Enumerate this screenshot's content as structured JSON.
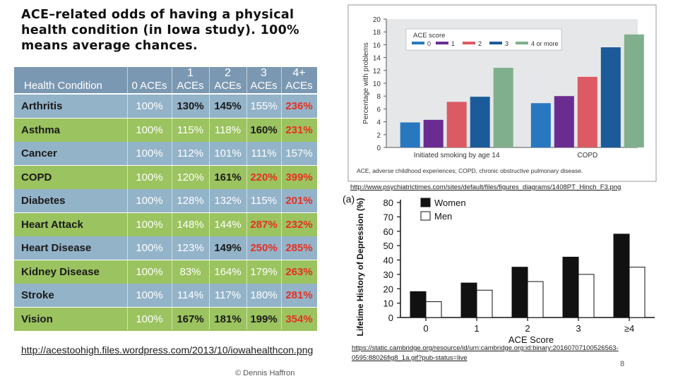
{
  "title": "ACE–related odds of having a physical health condition (in Iowa study). 100% means average chances.",
  "table": {
    "headers": [
      {
        "top": "",
        "bottom": "Health Condition"
      },
      {
        "top": "",
        "bottom": "0 ACEs"
      },
      {
        "top": "1",
        "bottom": "ACEs"
      },
      {
        "top": "2",
        "bottom": "ACEs"
      },
      {
        "top": "3",
        "bottom": "ACEs"
      },
      {
        "top": "4+",
        "bottom": "ACEs"
      }
    ],
    "rows": [
      {
        "condition": "Arthritis",
        "values": [
          "100%",
          "130%",
          "145%",
          "155%",
          "236%"
        ],
        "emphasis": [
          "n",
          "b",
          "b",
          "n",
          "r"
        ]
      },
      {
        "condition": "Asthma",
        "values": [
          "100%",
          "115%",
          "118%",
          "160%",
          "231%"
        ],
        "emphasis": [
          "n",
          "n",
          "n",
          "b",
          "r"
        ]
      },
      {
        "condition": "Cancer",
        "values": [
          "100%",
          "112%",
          "101%",
          "111%",
          "157%"
        ],
        "emphasis": [
          "n",
          "n",
          "n",
          "n",
          "n"
        ]
      },
      {
        "condition": "COPD",
        "values": [
          "100%",
          "120%",
          "161%",
          "220%",
          "399%"
        ],
        "emphasis": [
          "n",
          "n",
          "b",
          "r",
          "r"
        ]
      },
      {
        "condition": "Diabetes",
        "values": [
          "100%",
          "128%",
          "132%",
          "115%",
          "201%"
        ],
        "emphasis": [
          "n",
          "n",
          "n",
          "n",
          "r"
        ]
      },
      {
        "condition": "Heart Attack",
        "values": [
          "100%",
          "148%",
          "144%",
          "287%",
          "232%"
        ],
        "emphasis": [
          "n",
          "n",
          "n",
          "r",
          "r"
        ]
      },
      {
        "condition": "Heart Disease",
        "values": [
          "100%",
          "123%",
          "149%",
          "250%",
          "285%"
        ],
        "emphasis": [
          "n",
          "n",
          "b",
          "r",
          "r"
        ]
      },
      {
        "condition": "Kidney Disease",
        "values": [
          "100%",
          "83%",
          "164%",
          "179%",
          "263%"
        ],
        "emphasis": [
          "n",
          "n",
          "n",
          "n",
          "r"
        ]
      },
      {
        "condition": "Stroke",
        "values": [
          "100%",
          "114%",
          "117%",
          "180%",
          "281%"
        ],
        "emphasis": [
          "n",
          "n",
          "n",
          "n",
          "r"
        ]
      },
      {
        "condition": "Vision",
        "values": [
          "100%",
          "167%",
          "181%",
          "199%",
          "354%"
        ],
        "emphasis": [
          "n",
          "b",
          "b",
          "b",
          "r"
        ]
      }
    ],
    "colors": {
      "row_blue": "#93b3c9",
      "row_green": "#9bc35f",
      "header": "#7b98b2",
      "emph_red": "#e53021",
      "value_white": "#ffffff",
      "value_dark": "#1a1a1a"
    }
  },
  "source_left": "http://acestoohigh.files.wordpress.com/2013/10/iowahealthcon.png",
  "footer": "© Dennis Haffron",
  "source_top_right": "http://www.psychiatrictimes.com/sites/default/files/figures_diagrams/1408PT_Hinch_F3.png",
  "source_bottom_right": "https://static.cambridge.org/resource/id/urn:cambridge.org:id:binary:20160707100526563-0595:88026fig8_1a.gif?pub-status=live",
  "page_number": "8",
  "chart_data": [
    {
      "type": "bar",
      "ylabel": "Percentage with problems",
      "ylim": [
        0,
        20
      ],
      "yticks": [
        0,
        2,
        4,
        6,
        8,
        10,
        12,
        14,
        16,
        18,
        20
      ],
      "categories": [
        "Initiated smoking by age 14",
        "COPD"
      ],
      "legend_title": "ACE score",
      "legend_position": "top",
      "grid": false,
      "series": [
        {
          "name": "0",
          "color": "#2878c0",
          "values": [
            3.9,
            6.9
          ]
        },
        {
          "name": "1",
          "color": "#6a2c91",
          "values": [
            4.3,
            8.0
          ]
        },
        {
          "name": "2",
          "color": "#dc5a63",
          "values": [
            7.1,
            11.0
          ]
        },
        {
          "name": "3",
          "color": "#1b5b9a",
          "values": [
            7.9,
            15.6
          ]
        },
        {
          "name": "4 or more",
          "color": "#7faf8c",
          "values": [
            12.4,
            17.6
          ]
        }
      ],
      "caption": "ACE, adverse childhood experiences; COPD, chronic obstructive pulmonary disease."
    },
    {
      "type": "bar",
      "panel_label": "(a)",
      "xlabel": "ACE Score",
      "ylabel": "Lifetime History of Depression (%)",
      "ylim": [
        0,
        80
      ],
      "yticks": [
        0,
        10,
        20,
        30,
        40,
        50,
        60,
        70,
        80
      ],
      "categories": [
        "0",
        "1",
        "2",
        "3",
        "≥4"
      ],
      "legend_position": "top-left",
      "grid": false,
      "series": [
        {
          "name": "Women",
          "color": "#111111",
          "values": [
            18,
            24,
            35,
            42,
            58
          ]
        },
        {
          "name": "Men",
          "color": "#ffffff",
          "values": [
            11,
            19,
            25,
            30,
            35
          ]
        }
      ]
    }
  ]
}
